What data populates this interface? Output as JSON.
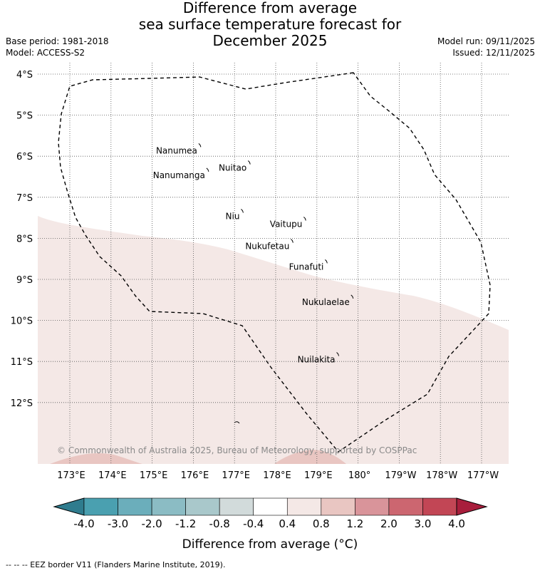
{
  "title": {
    "line1": "Difference from average",
    "line2": "sea surface temperature forecast for",
    "line3": "December 2025"
  },
  "meta_left": {
    "base_period": "Base period: 1981-2018",
    "model": "Model: ACCESS-S2"
  },
  "meta_right": {
    "model_run": "Model run: 09/11/2025",
    "issued": "Issued: 12/11/2025"
  },
  "map": {
    "lat_ticks": [
      "4°S",
      "5°S",
      "6°S",
      "7°S",
      "8°S",
      "9°S",
      "10°S",
      "11°S",
      "12°S"
    ],
    "lon_ticks": [
      "173°E",
      "174°E",
      "175°E",
      "176°E",
      "177°E",
      "178°E",
      "179°E",
      "180°",
      "179°W",
      "178°W",
      "177°W"
    ],
    "islands": [
      {
        "name": "Nanumea",
        "lon": 176.13,
        "lat": -5.69
      },
      {
        "name": "Nuitao",
        "lon": 177.33,
        "lat": -6.11
      },
      {
        "name": "Nanumanga",
        "lon": 176.32,
        "lat": -6.29
      },
      {
        "name": "Niu",
        "lon": 177.16,
        "lat": -7.29
      },
      {
        "name": "Vaitupu",
        "lon": 178.68,
        "lat": -7.48
      },
      {
        "name": "Nukufetau",
        "lon": 178.37,
        "lat": -8.02
      },
      {
        "name": "Funafuti",
        "lon": 179.2,
        "lat": -8.52
      },
      {
        "name": "Nukulaelae",
        "lon": 179.83,
        "lat": -9.38
      },
      {
        "name": "Nuilakita",
        "lon": 179.48,
        "lat": -10.78
      }
    ],
    "anomaly_fill_color": "#f4e8e6",
    "anomaly_warm_patch_color": "#e9c6c2",
    "copyright": "© Commonwealth of Australia 2025, Bureau of Meteorology, supported by COSPPac"
  },
  "colorbar": {
    "colors": [
      "#2f7c8e",
      "#4aa0b0",
      "#6baebb",
      "#8bbcc4",
      "#a9c8cb",
      "#d2dbdb",
      "#ffffff",
      "#f4e8e6",
      "#e9c6c2",
      "#d9949a",
      "#cc6670",
      "#c24655",
      "#a81e3c"
    ],
    "tick_labels": [
      "-4.0",
      "-3.0",
      "-2.0",
      "-1.2",
      "-0.8",
      "-0.4",
      "0.4",
      "0.8",
      "1.2",
      "2.0",
      "3.0",
      "4.0"
    ],
    "label": "Difference from average (°C)"
  },
  "footer": "-- -- -- EEZ border V11 (Flanders Marine Institute, 2019)."
}
